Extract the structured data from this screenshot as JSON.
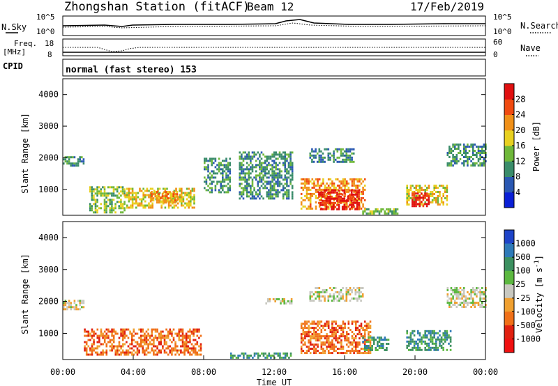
{
  "header": {
    "station": "Zhongshan Station (fitACF)",
    "beam": "Beam 12",
    "date": "17/Feb/2019"
  },
  "panels": {
    "nsky": {
      "label": "N.Sky",
      "tick_top": "10^5",
      "tick_bottom": "10^0"
    },
    "nsearch": {
      "label": "N.Search",
      "tick_top": "10^5",
      "tick_bottom": "10^0"
    },
    "freq": {
      "label_line1": "Freq.",
      "label_line2": "[MHz]",
      "tick_top": "18",
      "tick_bottom": "8"
    },
    "nave": {
      "label": "Nave",
      "tick_top": "60",
      "tick_bottom": "0"
    },
    "cpid": {
      "label": "CPID",
      "mode": "normal (fast stereo) 153"
    }
  },
  "chart_data": [
    {
      "type": "heatmap",
      "name": "power",
      "ylabel": "Slant Range [km]",
      "xlabel": "",
      "ylim": [
        180,
        4500
      ],
      "yticks": [
        "1000",
        "2000",
        "3000",
        "4000"
      ],
      "colorbar": {
        "label": "Power [dB]",
        "range": [
          0,
          32
        ],
        "ticks": [
          "4",
          "8",
          "12",
          "16",
          "20",
          "24",
          "28"
        ],
        "colors": [
          "#0a1fd6",
          "#2a58b2",
          "#3a8c6a",
          "#6fb83a",
          "#e8d020",
          "#f09018",
          "#f04a10",
          "#e01010"
        ]
      },
      "regions": [
        {
          "t0": 0.0,
          "t1": 1.2,
          "r0": 1750,
          "r1": 2050,
          "level": 2
        },
        {
          "t0": 1.5,
          "t1": 3.5,
          "r0": 300,
          "r1": 1100,
          "level": 3
        },
        {
          "t0": 3.5,
          "t1": 7.5,
          "r0": 400,
          "r1": 1050,
          "level": 4
        },
        {
          "t0": 5.0,
          "t1": 6.5,
          "r0": 600,
          "r1": 950,
          "level": 5
        },
        {
          "t0": 8.0,
          "t1": 9.5,
          "r0": 900,
          "r1": 2000,
          "level": 2
        },
        {
          "t0": 10.0,
          "t1": 13.0,
          "r0": 700,
          "r1": 2200,
          "level": 2
        },
        {
          "t0": 13.5,
          "t1": 17.2,
          "r0": 400,
          "r1": 1350,
          "level": 5
        },
        {
          "t0": 14.5,
          "t1": 16.8,
          "r0": 350,
          "r1": 1000,
          "level": 7
        },
        {
          "t0": 14.0,
          "t1": 16.5,
          "r0": 1900,
          "r1": 2300,
          "level": 2
        },
        {
          "t0": 17.0,
          "t1": 19.0,
          "r0": 250,
          "r1": 400,
          "level": 3
        },
        {
          "t0": 19.5,
          "t1": 21.8,
          "r0": 500,
          "r1": 1150,
          "level": 4
        },
        {
          "t0": 19.8,
          "t1": 20.8,
          "r0": 500,
          "r1": 900,
          "level": 7
        },
        {
          "t0": 21.8,
          "t1": 24.0,
          "r0": 1750,
          "r1": 2450,
          "level": 2
        }
      ]
    },
    {
      "type": "heatmap",
      "name": "velocity",
      "ylabel": "Slant Range [km]",
      "xlabel": "Time UT",
      "ylim": [
        180,
        4500
      ],
      "yticks": [
        "1000",
        "2000",
        "3000",
        "4000"
      ],
      "xticks": [
        "00:00",
        "04:00",
        "08:00",
        "12:00",
        "16:00",
        "20:00",
        "00:00"
      ],
      "colorbar": {
        "label": "Velocity [m s",
        "label_exp": "-1",
        "label_close": "]",
        "ticks": [
          "1000",
          "500",
          "100",
          "25",
          "-25",
          "-100",
          "-500",
          "-1000"
        ],
        "colors": [
          "#1e44c8",
          "#2e7ab8",
          "#3c9060",
          "#5cb840",
          "#c8c8c0",
          "#f0a030",
          "#f07018",
          "#e02010",
          "#f01010"
        ]
      },
      "regions": [
        {
          "t0": 0.0,
          "t1": 1.2,
          "r0": 1750,
          "r1": 2050,
          "level": 4
        },
        {
          "t0": 1.2,
          "t1": 7.8,
          "r0": 300,
          "r1": 1150,
          "level": 6
        },
        {
          "t0": 11.5,
          "t1": 13.0,
          "r0": 1950,
          "r1": 2100,
          "level": 4
        },
        {
          "t0": 14.0,
          "t1": 17.0,
          "r0": 2000,
          "r1": 2450,
          "level": 4
        },
        {
          "t0": 13.5,
          "t1": 17.5,
          "r0": 400,
          "r1": 1400,
          "level": 6
        },
        {
          "t0": 17.0,
          "t1": 18.5,
          "r0": 500,
          "r1": 900,
          "level": 2
        },
        {
          "t0": 19.5,
          "t1": 22.0,
          "r0": 500,
          "r1": 1100,
          "level": 2
        },
        {
          "t0": 21.8,
          "t1": 24.0,
          "r0": 1800,
          "r1": 2450,
          "level": 4
        },
        {
          "t0": 9.5,
          "t1": 13.0,
          "r0": 250,
          "r1": 400,
          "level": 2
        }
      ]
    }
  ]
}
